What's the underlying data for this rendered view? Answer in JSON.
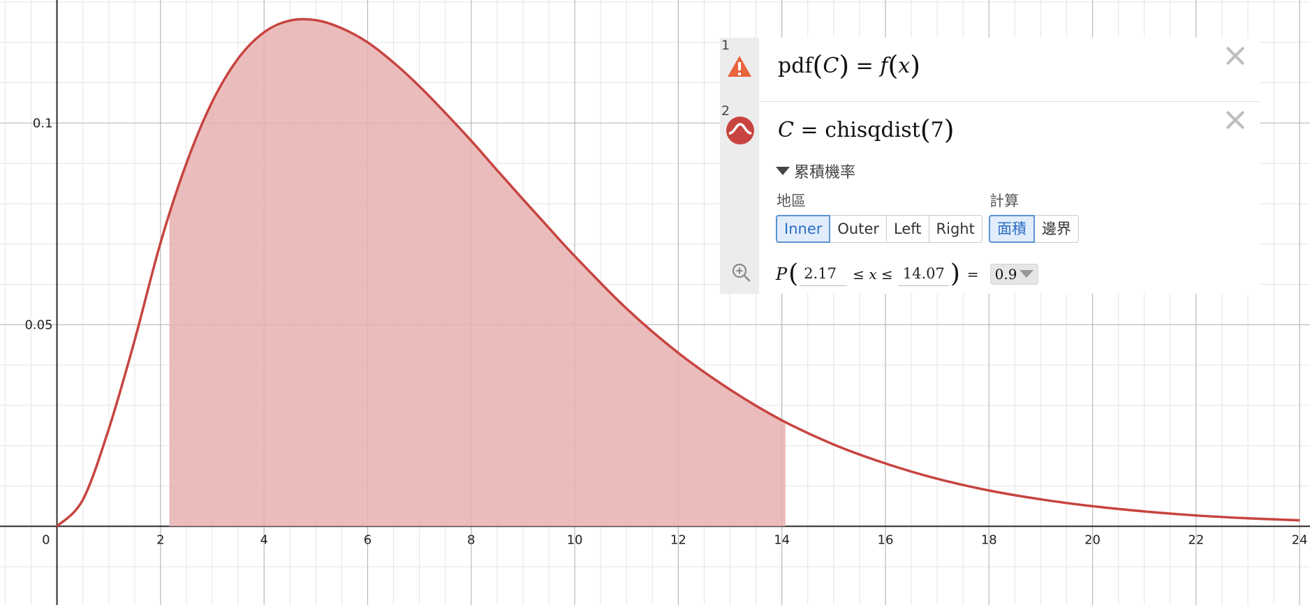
{
  "graph": {
    "x_tick_labels": [
      "0",
      "2",
      "4",
      "6",
      "8",
      "10",
      "12",
      "14",
      "16",
      "18",
      "20",
      "22",
      "24"
    ],
    "y_tick_labels": [
      "0.05",
      "0.1"
    ],
    "curve_color": "#c74440",
    "fill_color": "#e8b0b0"
  },
  "chart_data": {
    "type": "area",
    "title": "",
    "xlabel": "",
    "ylabel": "",
    "xlim": [
      -1.1,
      24.2
    ],
    "ylim": [
      -0.0195,
      0.1305
    ],
    "grid": true,
    "series": [
      {
        "x": [
          0,
          0.5,
          1,
          1.5,
          2,
          2.5,
          3,
          3.5,
          4,
          4.5,
          5,
          5.5,
          6,
          6.5,
          7,
          7.5,
          8,
          8.5,
          9,
          9.5,
          10,
          11,
          12,
          13,
          14,
          15,
          16,
          17,
          18,
          19,
          20,
          21,
          22,
          23,
          24
        ],
        "values": [
          0,
          0.0066,
          0.0241,
          0.0461,
          0.0703,
          0.09,
          0.1053,
          0.116,
          0.1225,
          0.1254,
          0.1255,
          0.1235,
          0.12,
          0.115,
          0.1091,
          0.1025,
          0.0956,
          0.0883,
          0.0811,
          0.074,
          0.067,
          0.054,
          0.043,
          0.0339,
          0.0263,
          0.0203,
          0.0156,
          0.0118,
          0.0089,
          0.0067,
          0.005,
          0.0037,
          0.0027,
          0.002,
          0.0015
        ]
      }
    ],
    "shaded_region": [
      2.17,
      14.07
    ]
  },
  "expressions": [
    {
      "index": "1",
      "icon": "warning-icon",
      "lhs": "pdf",
      "arg": "C",
      "rhs_fn": "f",
      "rhs_arg": "x"
    },
    {
      "index": "2",
      "icon": "distribution-icon",
      "var": "C",
      "fn": "chisqdist",
      "arg": "7",
      "section_label": "累積機率",
      "region_label": "地區",
      "region_options": [
        "Inner",
        "Outer",
        "Left",
        "Right"
      ],
      "region_selected": "Inner",
      "compute_label": "計算",
      "compute_options": [
        "面積",
        "邊界"
      ],
      "compute_selected": "面積",
      "prob_symbol": "P",
      "lower": "2.17",
      "upper": "14.07",
      "var_x": "x",
      "result": "0.9"
    }
  ]
}
